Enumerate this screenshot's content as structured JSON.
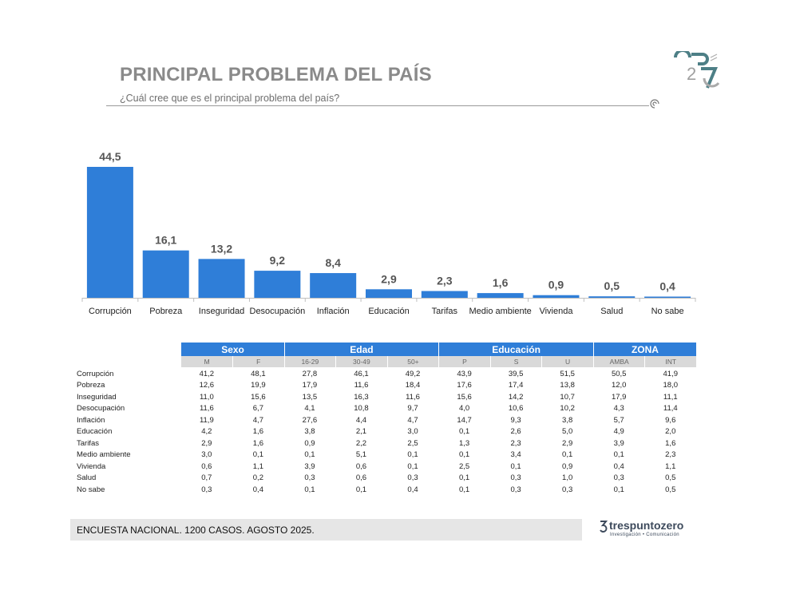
{
  "header": {
    "title": "PRINCIPAL PROBLEMA DEL PAÍS",
    "subtitle": "¿Cuál cree que es el principal problema del país?"
  },
  "chart_data": {
    "type": "bar",
    "categories": [
      "Corrupción",
      "Pobreza",
      "Inseguridad",
      "Desocupación",
      "Inflación",
      "Educación",
      "Tarifas",
      "Medio ambiente",
      "Vivienda",
      "Salud",
      "No sabe"
    ],
    "values": [
      44.5,
      16.1,
      13.2,
      9.2,
      8.4,
      2.9,
      2.3,
      1.6,
      0.9,
      0.5,
      0.4
    ],
    "value_labels": [
      "44,5",
      "16,1",
      "13,2",
      "9,2",
      "8,4",
      "2,9",
      "2,3",
      "1,6",
      "0,9",
      "0,5",
      "0,4"
    ],
    "ylim": [
      0,
      44.5
    ],
    "bar_color": "#2f7ed8",
    "grid": false,
    "legend": "none"
  },
  "table": {
    "groups": [
      {
        "label": "Sexo",
        "subs": [
          "M",
          "F"
        ]
      },
      {
        "label": "Edad",
        "subs": [
          "16-29",
          "30-49",
          "50+"
        ]
      },
      {
        "label": "Educación",
        "subs": [
          "P",
          "S",
          "U"
        ]
      },
      {
        "label": "ZONA",
        "subs": [
          "AMBA",
          "INT"
        ]
      }
    ],
    "rows": [
      {
        "label": "Corrupción",
        "values": [
          "41,2",
          "48,1",
          "27,8",
          "46,1",
          "49,2",
          "43,9",
          "39,5",
          "51,5",
          "50,5",
          "41,9"
        ]
      },
      {
        "label": "Pobreza",
        "values": [
          "12,6",
          "19,9",
          "17,9",
          "11,6",
          "18,4",
          "17,6",
          "17,4",
          "13,8",
          "12,0",
          "18,0"
        ]
      },
      {
        "label": "Inseguridad",
        "values": [
          "11,0",
          "15,6",
          "13,5",
          "16,3",
          "11,6",
          "15,6",
          "14,2",
          "10,7",
          "17,9",
          "11,1"
        ]
      },
      {
        "label": "Desocupación",
        "values": [
          "11,6",
          "6,7",
          "4,1",
          "10,8",
          "9,7",
          "4,0",
          "10,6",
          "10,2",
          "4,3",
          "11,4"
        ]
      },
      {
        "label": "Inflación",
        "values": [
          "11,9",
          "4,7",
          "27,6",
          "4,4",
          "4,7",
          "14,7",
          "9,3",
          "3,8",
          "5,7",
          "9,6"
        ]
      },
      {
        "label": "Educación",
        "values": [
          "4,2",
          "1,6",
          "3,8",
          "2,1",
          "3,0",
          "0,1",
          "2,6",
          "5,0",
          "4,9",
          "2,0"
        ]
      },
      {
        "label": "Tarifas",
        "values": [
          "2,9",
          "1,6",
          "0,9",
          "2,2",
          "2,5",
          "1,3",
          "2,3",
          "2,9",
          "3,9",
          "1,6"
        ]
      },
      {
        "label": "Medio ambiente",
        "values": [
          "3,0",
          "0,1",
          "0,1",
          "5,1",
          "0,1",
          "0,1",
          "3,4",
          "0,1",
          "0,1",
          "2,3"
        ]
      },
      {
        "label": "Vivienda",
        "values": [
          "0,6",
          "1,1",
          "3,9",
          "0,6",
          "0,1",
          "2,5",
          "0,1",
          "0,9",
          "0,4",
          "1,1"
        ]
      },
      {
        "label": "Salud",
        "values": [
          "0,7",
          "0,2",
          "0,3",
          "0,6",
          "0,3",
          "0,1",
          "0,3",
          "1,0",
          "0,3",
          "0,5"
        ]
      },
      {
        "label": "No sabe",
        "values": [
          "0,3",
          "0,4",
          "0,1",
          "0,1",
          "0,4",
          "0,1",
          "0,3",
          "0,3",
          "0,1",
          "0,5"
        ]
      }
    ],
    "header_color": "#2f7ed8",
    "subheader_color": "#d9d9d9"
  },
  "footer": {
    "text": "ENCUESTA NACIONAL. 1200 CASOS. AGOSTO 2025."
  },
  "brand": {
    "name": "trespuntozero",
    "tagline": "Investigación • Comunicación"
  },
  "icons": {
    "corner_logo": "spiral-25-logo-icon",
    "rule_ornament": "spiral-ornament-icon",
    "brand_mark": "three-logo-icon"
  }
}
